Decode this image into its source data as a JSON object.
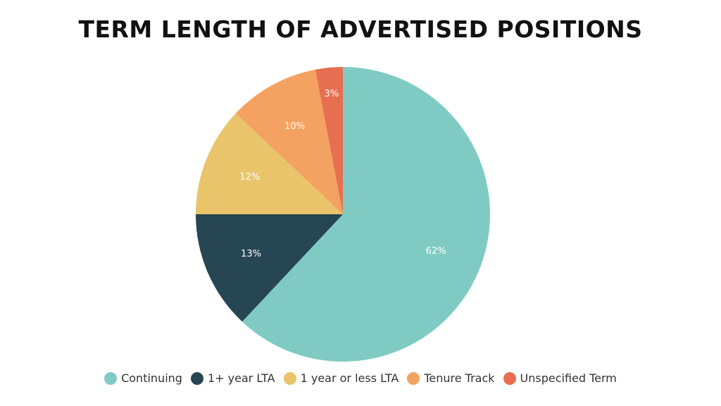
{
  "chart_data": {
    "type": "pie",
    "title": "TERM LENGTH OF ADVERTISED POSITIONS",
    "slices": [
      {
        "label": "Continuing",
        "value": 62,
        "display": "62%",
        "color": "#7fcbc3"
      },
      {
        "label": "1+ year LTA",
        "value": 13,
        "display": "13%",
        "color": "#264653"
      },
      {
        "label": "1 year or less LTA",
        "value": 12,
        "display": "12%",
        "color": "#e9c46a"
      },
      {
        "label": "Tenure Track",
        "value": 10,
        "display": "10%",
        "color": "#f4a261"
      },
      {
        "label": "Unspecified Term",
        "value": 3,
        "display": "3%",
        "color": "#e76f51"
      }
    ],
    "start_angle_deg": 0,
    "direction": "clockwise",
    "legend_position": "bottom"
  }
}
